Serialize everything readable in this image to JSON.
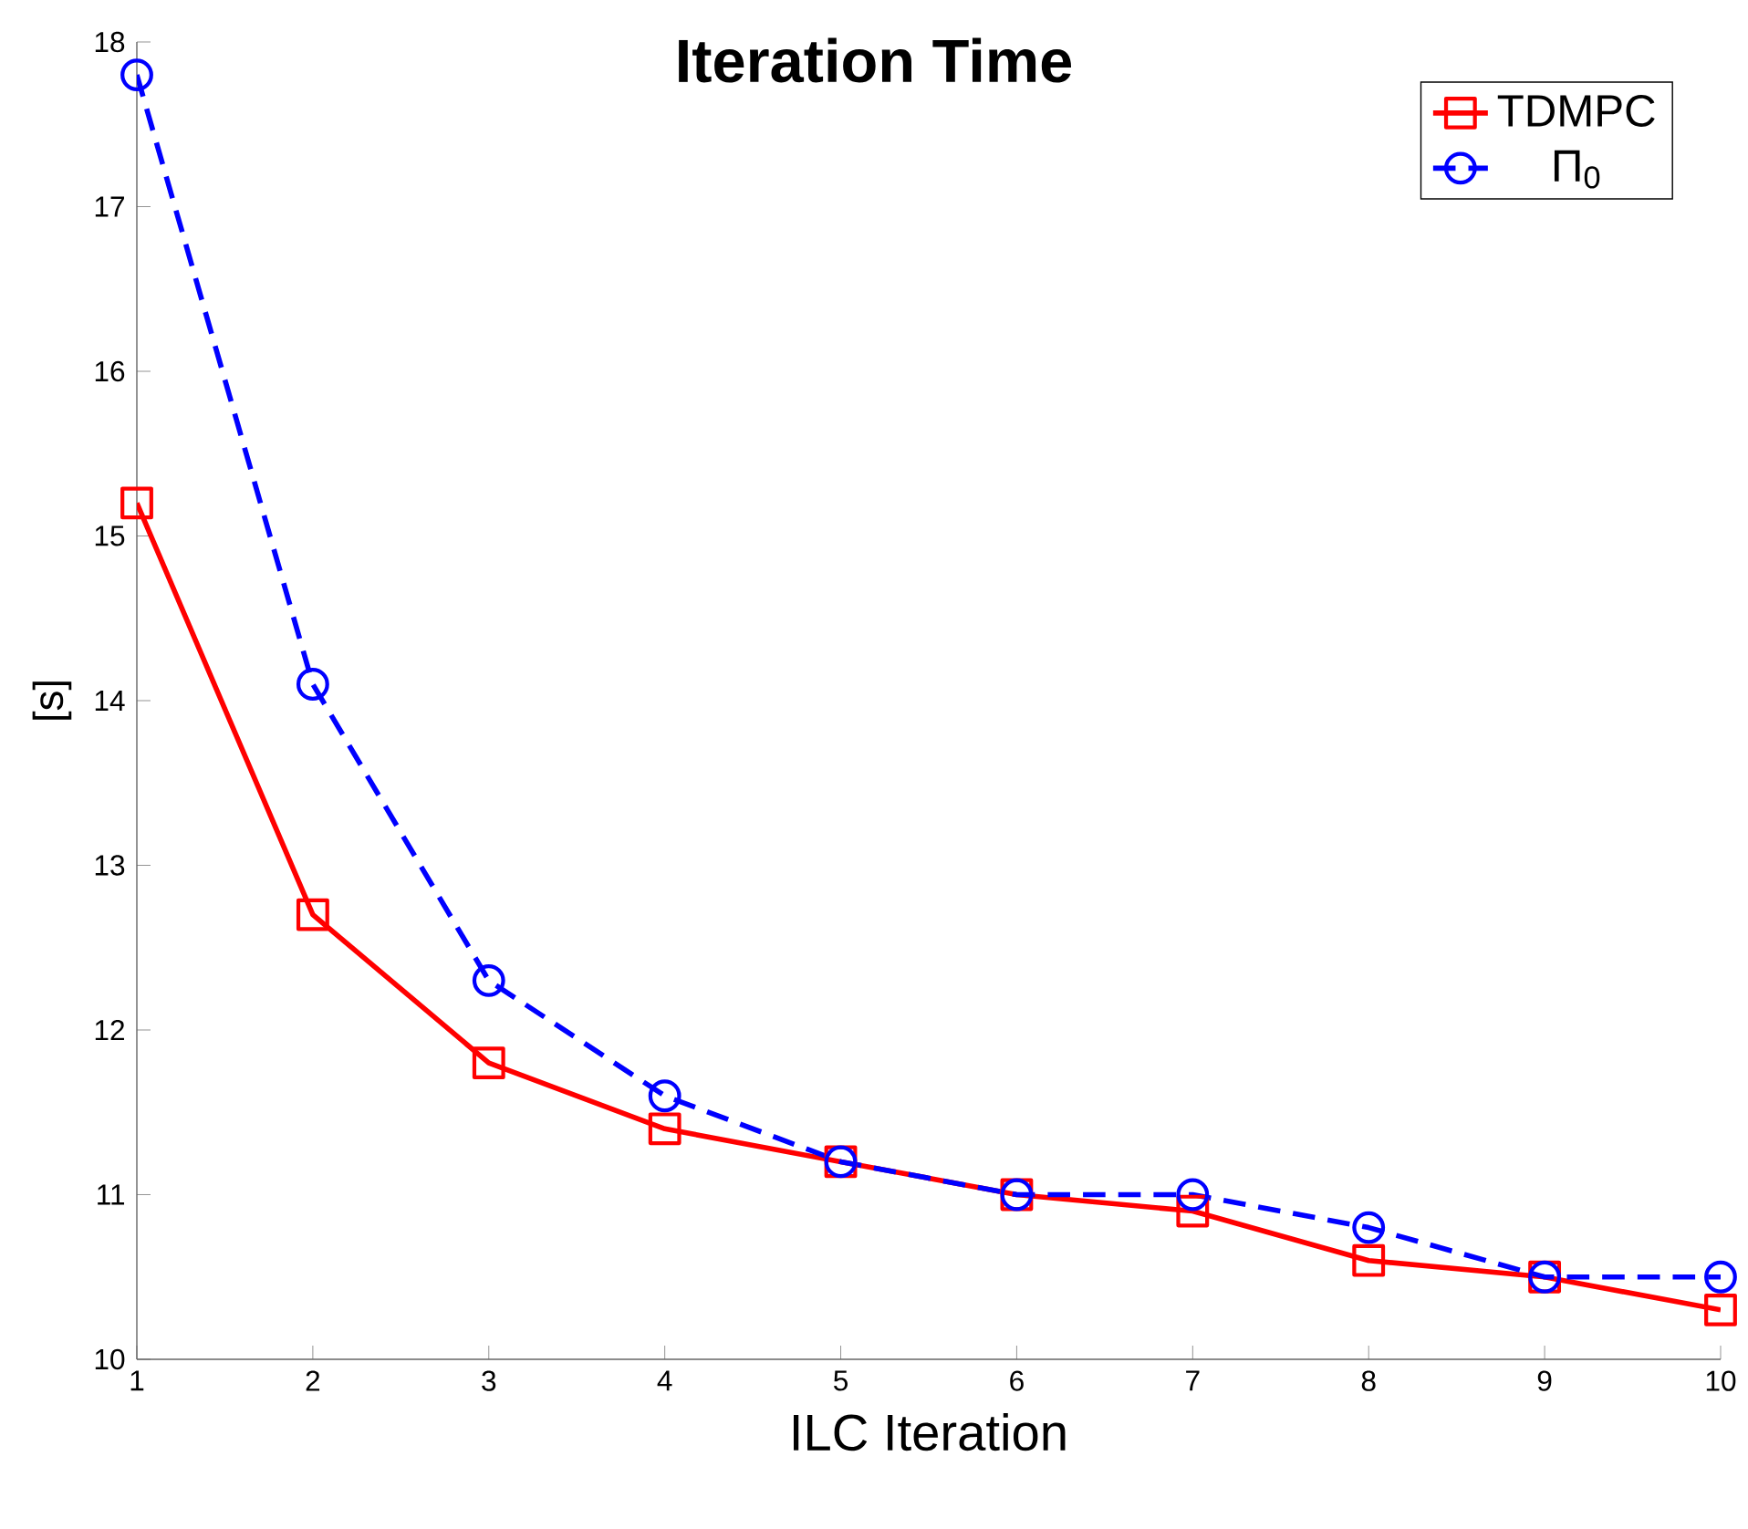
{
  "chart_data": {
    "type": "line",
    "title": "Iteration Time",
    "xlabel": "ILC Iteration",
    "ylabel": "[s]",
    "x": [
      1,
      2,
      3,
      4,
      5,
      6,
      7,
      8,
      9,
      10
    ],
    "series": [
      {
        "name": "TDMPC",
        "color": "#ff0000",
        "marker": "square",
        "line_style": "solid",
        "values": [
          15.2,
          12.7,
          11.8,
          11.4,
          11.2,
          11.0,
          10.9,
          10.6,
          10.5,
          10.3
        ]
      },
      {
        "name": "Π$_{0}$",
        "color": "#0000ff",
        "marker": "circle",
        "line_style": "dashed",
        "values": [
          17.8,
          14.1,
          12.3,
          11.6,
          11.2,
          11.0,
          11.0,
          10.8,
          10.5,
          10.5
        ]
      }
    ],
    "xlim": [
      1,
      10
    ],
    "ylim": [
      10,
      18
    ],
    "xticks": [
      1,
      2,
      3,
      4,
      5,
      6,
      7,
      8,
      9,
      10
    ],
    "yticks": [
      10,
      11,
      12,
      13,
      14,
      15,
      16,
      17,
      18
    ],
    "grid": false,
    "legend": "top right"
  }
}
